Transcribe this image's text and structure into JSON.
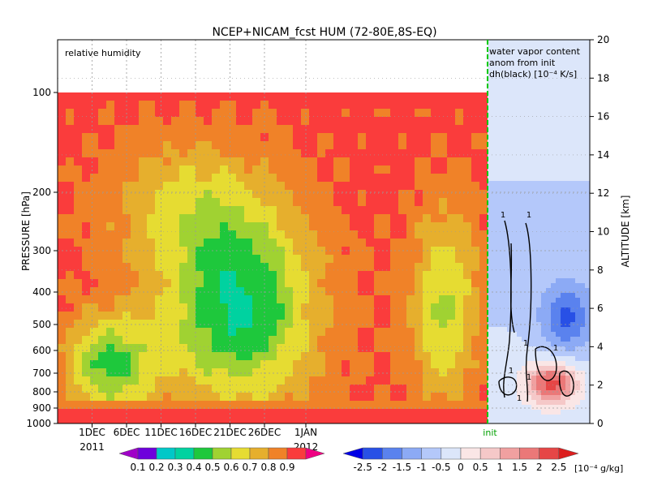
{
  "chart_data": [
    {
      "type": "heatmap",
      "title": "NCEP+NICAM_fcst HUM (72-80E,8S-EQ)",
      "panel_label": "relative humidity",
      "ylabel": "PRESSURE [hPa]",
      "y2label": "ALTITUDE [km]",
      "y_ticks": [
        "100",
        "200",
        "300",
        "400",
        "500",
        "600",
        "700",
        "800",
        "900",
        "1000"
      ],
      "y2_ticks": [
        "0",
        "2",
        "4",
        "6",
        "8",
        "10",
        "12",
        "14",
        "16",
        "18",
        "20"
      ],
      "x_ticks": [
        "1DEC",
        "6DEC",
        "11DEC",
        "16DEC",
        "21DEC",
        "26DEC",
        "1JAN"
      ],
      "x_years": [
        "2011",
        "2012"
      ],
      "init_label": "init",
      "colorbar": {
        "levels": [
          "0.1",
          "0.2",
          "0.3",
          "0.4",
          "0.5",
          "0.6",
          "0.7",
          "0.8",
          "0.9"
        ],
        "colors": [
          "#a000c8",
          "#6e00dc",
          "#00c8c8",
          "#00d2a0",
          "#1ec83c",
          "#a0d232",
          "#e6dc32",
          "#e6af2d",
          "#f08228",
          "#fa3c3c",
          "#f00082"
        ]
      },
      "rh_profile_ticks": [
        "1DEC",
        "6DEC",
        "11DEC",
        "16DEC",
        "21DEC",
        "26DEC"
      ]
    },
    {
      "type": "heatmap",
      "panel_label_lines": [
        "water vapor content",
        "anom from init",
        "dh(black) [10⁻⁴ K/s]"
      ],
      "contour_labels": [
        "1",
        "1",
        "1",
        "1",
        "1",
        "1",
        "1"
      ],
      "colorbar": {
        "levels": [
          "-2.5",
          "-2",
          "-1.5",
          "-1",
          "-0.5",
          "0",
          "0.5",
          "1",
          "1.5",
          "2",
          "2.5"
        ],
        "unit": "[10⁻⁴ g/kg]",
        "colors": [
          "#0000e6",
          "#2850e6",
          "#5a82ee",
          "#8caaf5",
          "#b4c8fa",
          "#dce6fa",
          "#fae6e6",
          "#f5c8c8",
          "#f0a0a0",
          "#eb7878",
          "#e64646",
          "#dc1e1e"
        ]
      }
    }
  ]
}
